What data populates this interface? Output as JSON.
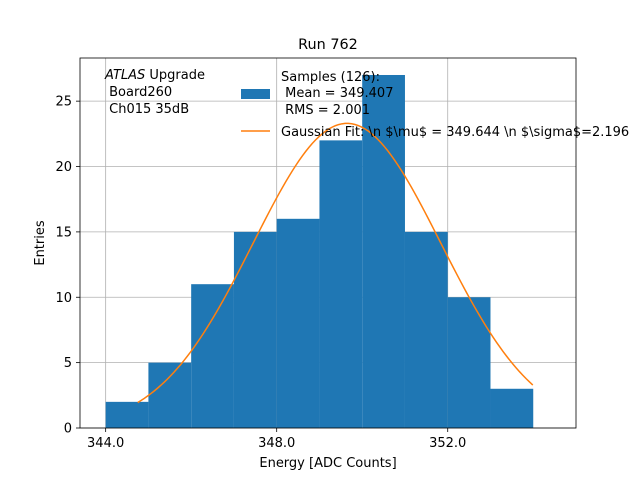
{
  "chart_data": {
    "type": "bar",
    "title": "Run 762",
    "xlabel": "Energy [ADC Counts]",
    "ylabel": "Entries",
    "xlim": [
      343.4,
      355.0
    ],
    "ylim": [
      0,
      28.3
    ],
    "grid": true,
    "x_ticks": [
      344.0,
      348.0,
      352.0
    ],
    "x_tick_labels": [
      "344.0",
      "348.0",
      "352.0"
    ],
    "y_ticks": [
      0,
      5,
      10,
      15,
      20,
      25
    ],
    "y_tick_labels": [
      "0",
      "5",
      "10",
      "15",
      "20",
      "25"
    ],
    "histogram": {
      "bin_edges": [
        344,
        345,
        346,
        347,
        348,
        349,
        350,
        351,
        352,
        353,
        354
      ],
      "counts": [
        2,
        5,
        11,
        15,
        16,
        22,
        27,
        15,
        10,
        3
      ],
      "color": "#1f77b4"
    },
    "fit": {
      "name": "Gaussian Fit",
      "mu": 349.644,
      "sigma": 2.196,
      "amplitude": 23.3,
      "x_range": [
        344.75,
        353.99
      ],
      "color": "#ff7f0e"
    },
    "legend": {
      "placement": "upper-center",
      "entries": [
        {
          "series": "histogram",
          "lines": [
            "Samples (126):",
            " Mean = 349.407",
            " RMS = 2.001"
          ]
        },
        {
          "series": "fit",
          "lines": [
            "Gaussian Fit: \\n $\\mu$ = 349.644 \\n $\\sigma$=2.196"
          ]
        }
      ]
    },
    "annotation": {
      "italic_part": "ATLAS",
      "rest": " Upgrade",
      "lines": [
        " Board260",
        " Ch015 35dB"
      ],
      "placement": "top-left"
    }
  }
}
